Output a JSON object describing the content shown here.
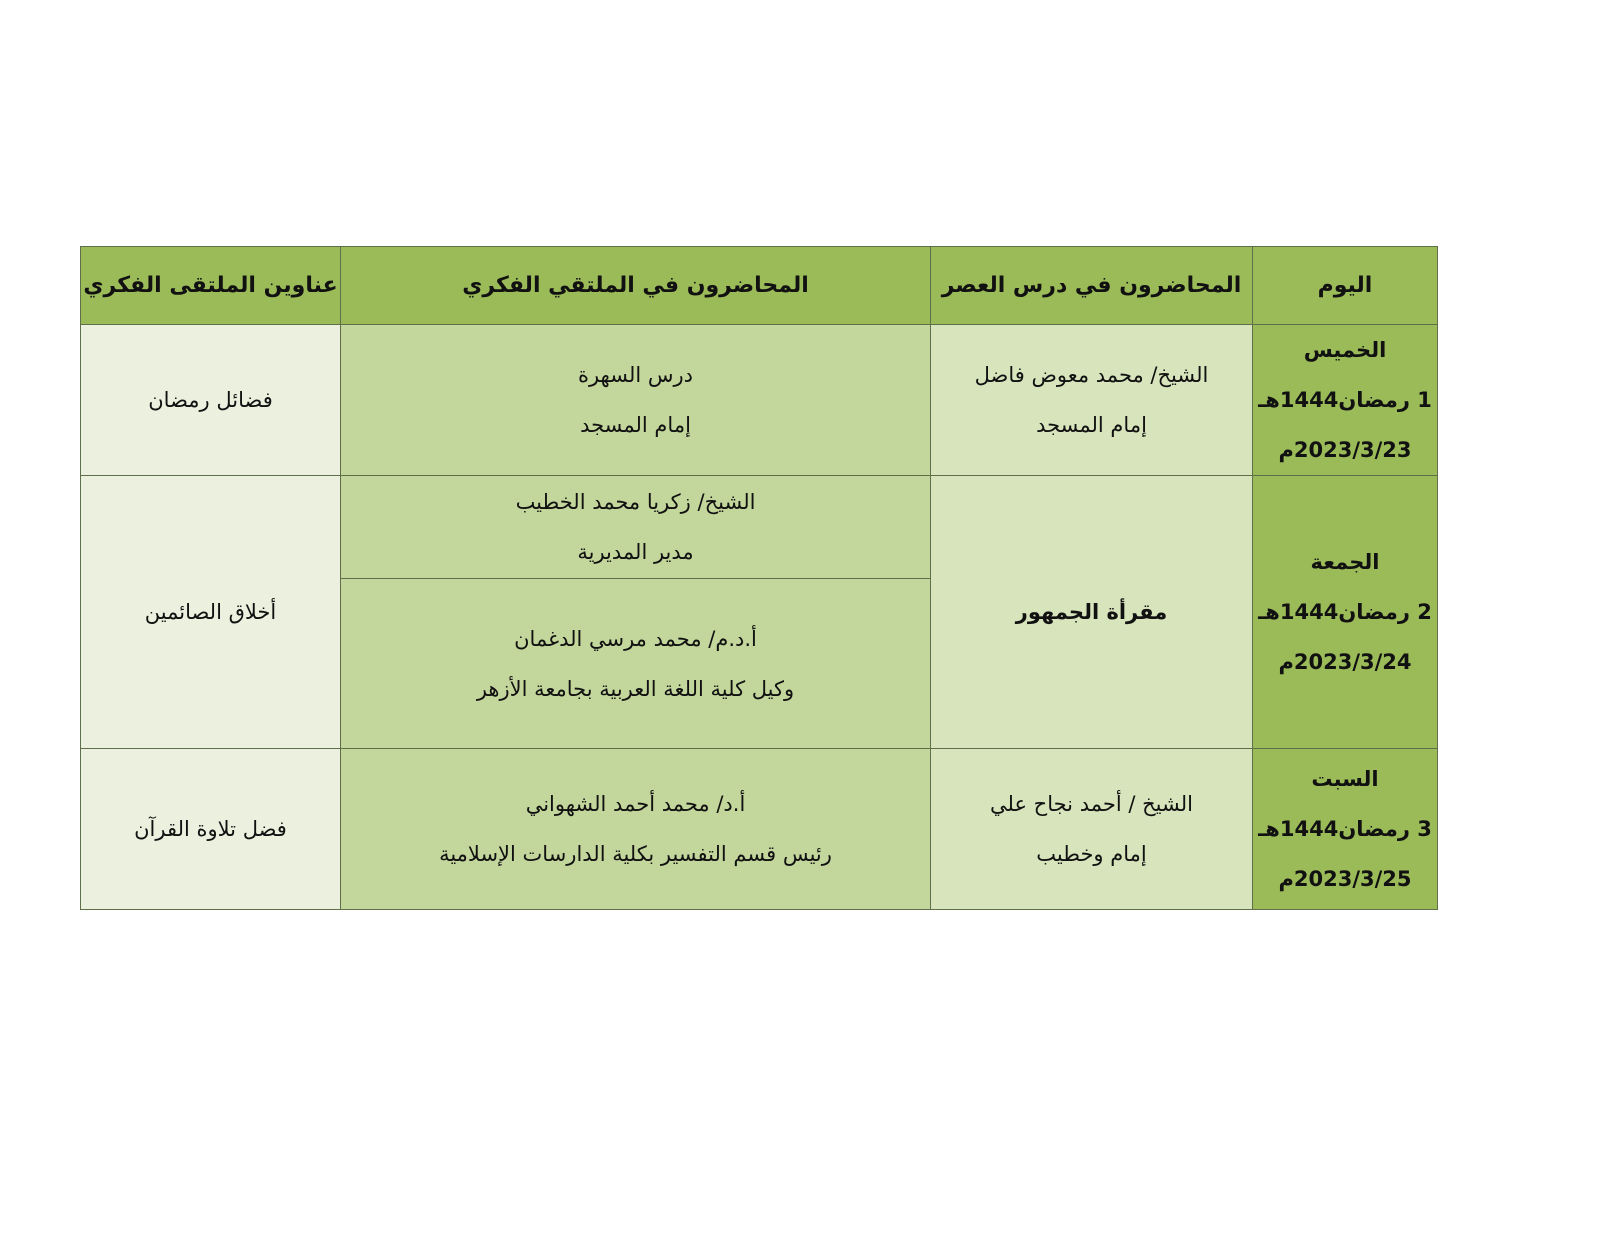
{
  "headers": {
    "day": "اليوم",
    "asr_lecturers": "المحاضرون في درس العصر",
    "forum_lecturers": "المحاضرون في الملتقي الفكري",
    "forum_titles": "عناوين الملتقى الفكري"
  },
  "rows": [
    {
      "day": [
        "الخميس",
        "1 رمضان1444هـ",
        "2023/3/23م"
      ],
      "asr": [
        "الشيخ/ محمد معوض فاضل",
        "إمام المسجد"
      ],
      "forum": [
        [
          "درس السهرة",
          "إمام المسجد"
        ]
      ],
      "title": "فضائل رمضان"
    },
    {
      "day": [
        "الجمعة",
        "2 رمضان1444هـ",
        "2023/3/24م"
      ],
      "asr": [
        "مقرأة الجمهور"
      ],
      "forum": [
        [
          "الشيخ/ زكريا محمد الخطيب",
          "مدير المديرية"
        ],
        [
          "أ.د.م/ محمد مرسي الدغمان",
          "وكيل كلية اللغة العربية بجامعة الأزهر"
        ]
      ],
      "title": "أخلاق الصائمين"
    },
    {
      "day": [
        "السبت",
        "3 رمضان1444هـ",
        "2023/3/25م"
      ],
      "asr": [
        "الشيخ / أحمد نجاح علي",
        "إمام وخطيب"
      ],
      "forum": [
        [
          "أ.د/ محمد أحمد الشهواني",
          "رئيس قسم التفسير بكلية الدارسات الإسلامية"
        ]
      ],
      "title": "فضل تلاوة القرآن"
    }
  ],
  "colors": {
    "header": "#9bbb59",
    "day": "#9bbb59",
    "asr": "#d7e4bc",
    "forum": "#c3d69b",
    "title": "#ebf1de"
  }
}
